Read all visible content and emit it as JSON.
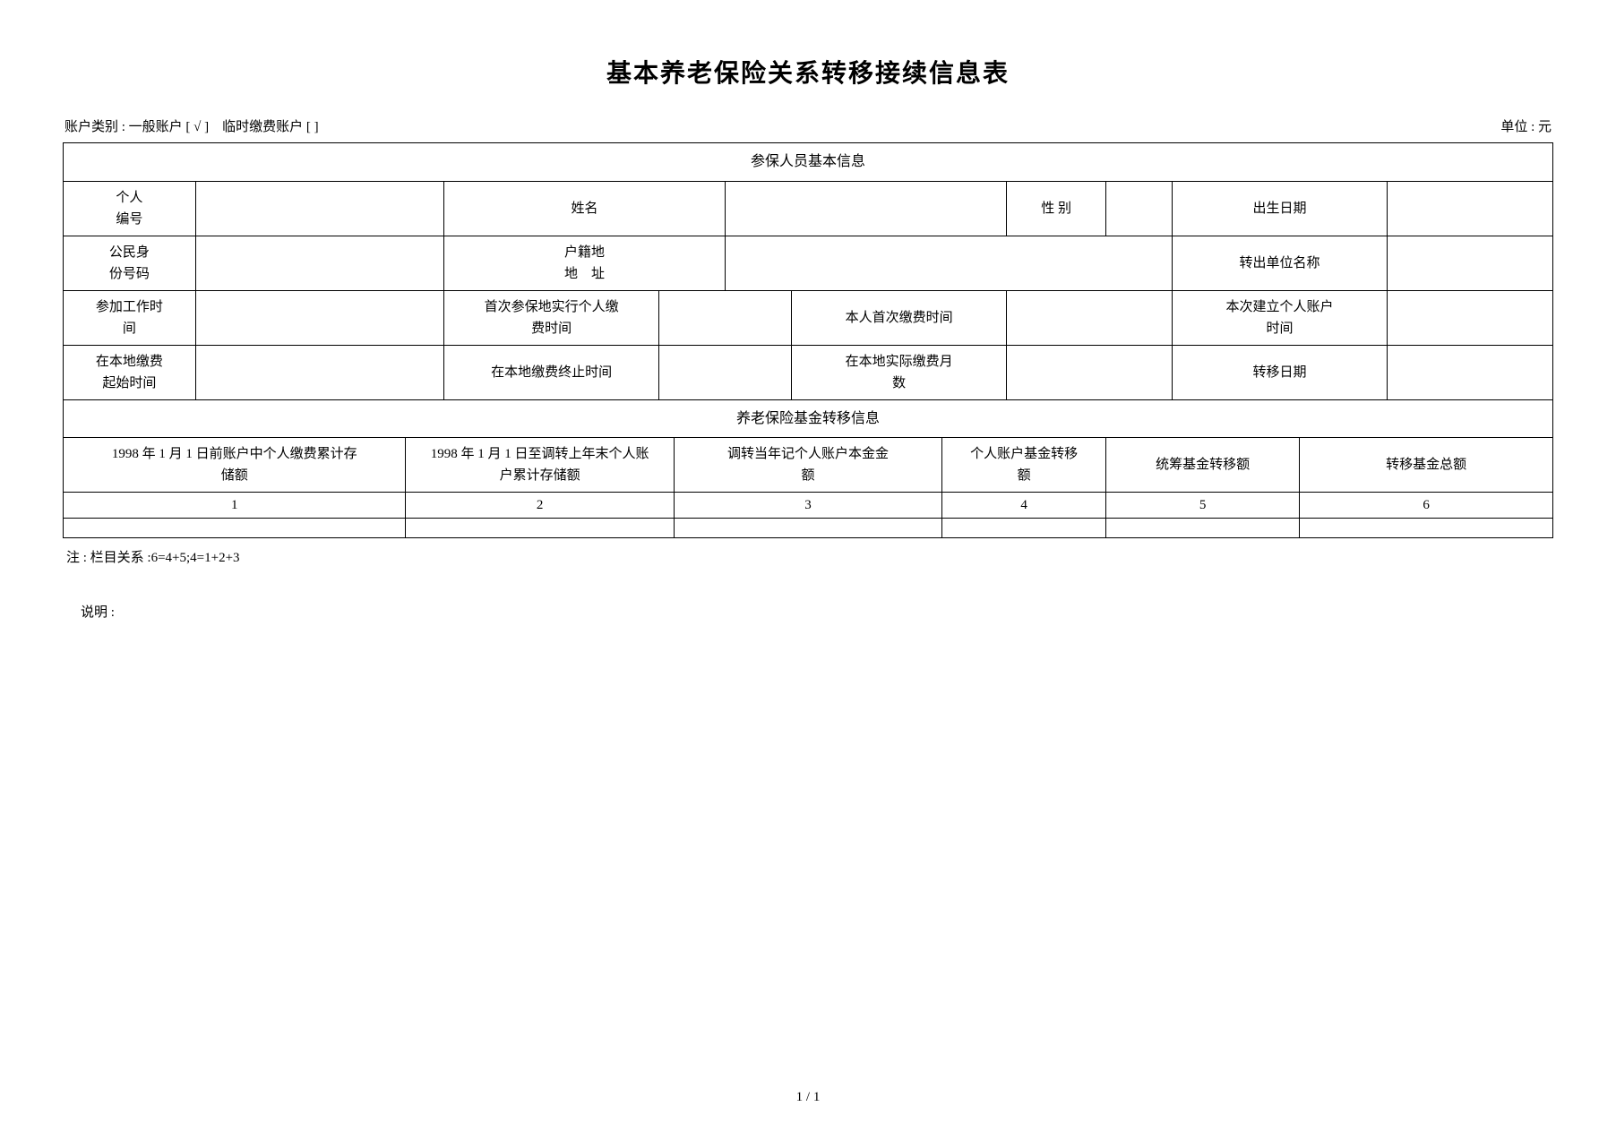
{
  "title": "基本养老保险关系转移接续信息表",
  "header": {
    "account_type_label": "账户类别 :",
    "account_general": "一般账户 [ √ ]",
    "account_temp": "临时缴费账户   [ ]",
    "unit_label": "单位 : 元"
  },
  "section1": {
    "header": "参保人员基本信息",
    "row1": {
      "c1": "个人\n编号",
      "c3": "姓名",
      "c5": "性    别",
      "c7": "出生日期"
    },
    "row2": {
      "c1": "公民身\n份号码",
      "c3": "户籍地\n地    址",
      "c5": "转出单位名称"
    },
    "row3": {
      "c1": "参加工作时\n间",
      "c3": "首次参保地实行个人缴\n费时间",
      "c5": "本人首次缴费时间",
      "c7": "本次建立个人账户\n时间"
    },
    "row4": {
      "c1": "在本地缴费\n起始时间",
      "c3": "在本地缴费终止时间",
      "c5": "在本地实际缴费月\n数",
      "c7": "转移日期"
    }
  },
  "section2": {
    "header": "养老保险基金转移信息",
    "cols": {
      "c1": "1998 年 1 月 1 日前账户中个人缴费累计存\n储额",
      "c2": "1998 年 1 月 1 日至调转上年末个人账\n户累计存储额",
      "c3": "调转当年记个人账户本金金\n额",
      "c4": "个人账户基金转移\n额",
      "c5": "统筹基金转移额",
      "c6": "转移基金总额"
    },
    "nums": {
      "c1": "1",
      "c2": "2",
      "c3": "3",
      "c4": "4",
      "c5": "5",
      "c6": "6"
    }
  },
  "note": "注 : 栏目关系 :6=4+5;4=1+2+3",
  "explain": "说明 :",
  "footer": "1 / 1"
}
